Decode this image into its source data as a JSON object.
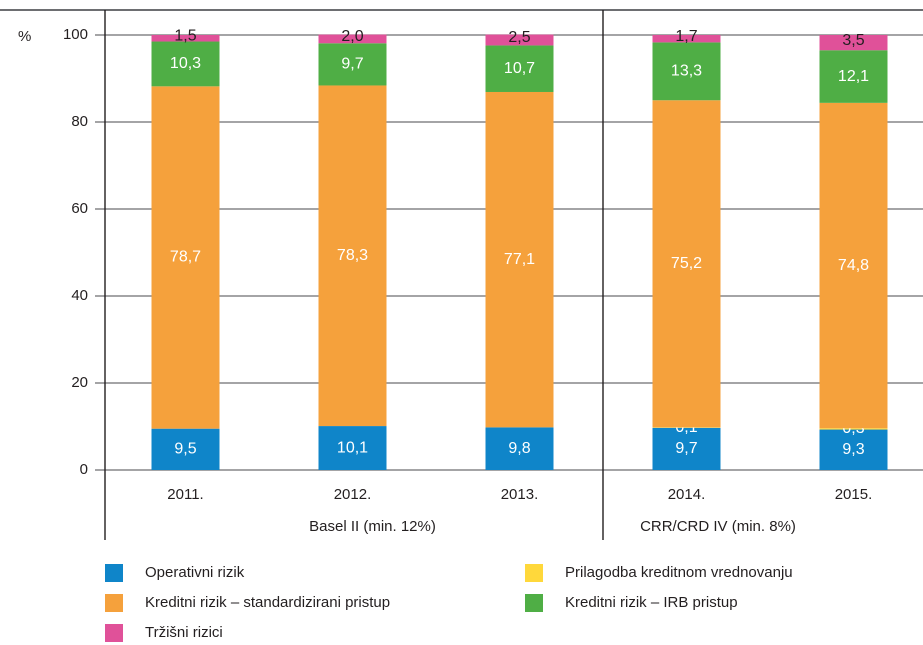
{
  "chart_data": {
    "type": "stacked_bar",
    "y_label": "%",
    "categories": [
      "2011.",
      "2012.",
      "2013.",
      "2014.",
      "2015."
    ],
    "groups": [
      {
        "label": "Basel II (min. 12%)",
        "categories": [
          "2011.",
          "2012.",
          "2013."
        ]
      },
      {
        "label": "CRR/CRD IV (min. 8%)",
        "categories": [
          "2014.",
          "2015."
        ]
      }
    ],
    "ylim": [
      0,
      100
    ],
    "yticks": [
      0,
      20,
      40,
      60,
      80,
      100
    ],
    "grid": true,
    "series": [
      {
        "name": "Operativni rizik",
        "color": "#0f85c9",
        "values": [
          9.5,
          10.1,
          9.8,
          9.7,
          9.3
        ],
        "value_labels": [
          "9,5",
          "10,1",
          "9,8",
          "9,7",
          "9,3"
        ]
      },
      {
        "name": "Prilagodba kreditnom vrednovanju",
        "color": "#ffd83b",
        "values": [
          null,
          null,
          null,
          0.1,
          0.3
        ],
        "value_labels": [
          null,
          null,
          null,
          "0,1",
          "0,3"
        ]
      },
      {
        "name": "Kreditni rizik – standardizirani pristup",
        "color": "#f5a13c",
        "values": [
          78.7,
          78.3,
          77.1,
          75.2,
          74.8
        ],
        "value_labels": [
          "78,7",
          "78,3",
          "77,1",
          "75,2",
          "74,8"
        ]
      },
      {
        "name": "Kreditni rizik – IRB pristup",
        "color": "#4fae45",
        "values": [
          10.3,
          9.7,
          10.7,
          13.3,
          12.1
        ],
        "value_labels": [
          "10,3",
          "9,7",
          "10,7",
          "13,3",
          "12,1"
        ]
      },
      {
        "name": "Tržišni rizici",
        "color": "#e05199",
        "values": [
          1.5,
          2.0,
          2.5,
          1.7,
          3.5
        ],
        "value_labels": [
          "1,5",
          "2,0",
          "2,5",
          "1,7",
          "3,5"
        ]
      }
    ]
  }
}
